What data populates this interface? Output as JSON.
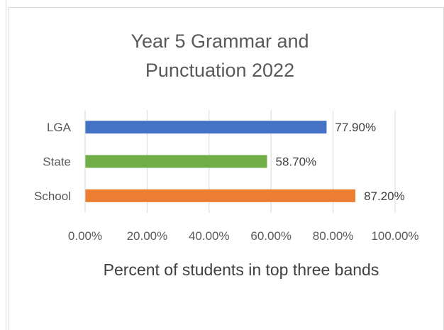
{
  "chart_data": {
    "type": "bar",
    "orientation": "horizontal",
    "title": "Year 5 Grammar and Punctuation 2022",
    "xlabel": "Percent of students in top three bands",
    "ylabel": "",
    "categories": [
      "LGA",
      "State",
      "School"
    ],
    "values": [
      77.9,
      58.7,
      87.2
    ],
    "data_labels": [
      "77.90%",
      "58.70%",
      "87.20%"
    ],
    "colors": [
      "#4472c4",
      "#70ad47",
      "#ed7d31"
    ],
    "xlim": [
      0,
      100
    ],
    "x_ticks": [
      "0.00%",
      "20.00%",
      "40.00%",
      "60.00%",
      "80.00%",
      "100.00%"
    ],
    "grid": true,
    "legend": "none"
  }
}
